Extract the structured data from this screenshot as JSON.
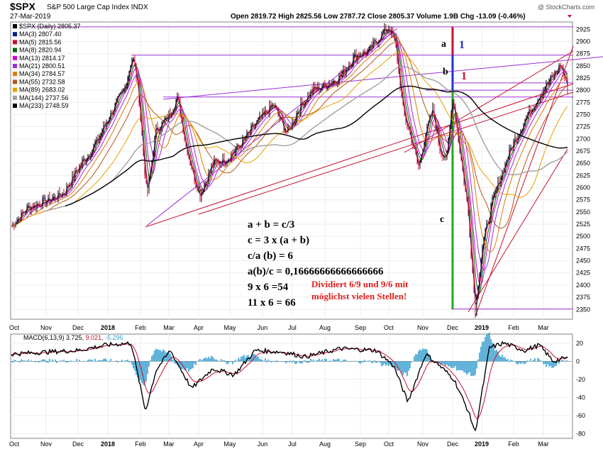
{
  "header": {
    "symbol": "$SPX",
    "name": "S&P 500 Large Cap Index INDX",
    "date": "27-Mar-2019",
    "watermark": "@ StockCharts.com",
    "ohlc": "Open 2819.72  High 2825.56  Low 2787.72  Close 2805.37  Volume 1.9B  Chg -13.09 (-0.46%)"
  },
  "legend": [
    {
      "label": "$SPX (Daily) 2805.37",
      "color": "#000000"
    },
    {
      "label": "MA(3) 2807.40",
      "color": "#0a1a8c"
    },
    {
      "label": "MA(5) 2815.56",
      "color": "#c8102e"
    },
    {
      "label": "MA(8) 2820.94",
      "color": "#006400"
    },
    {
      "label": "MA(13) 2814.17",
      "color": "#d400d4"
    },
    {
      "label": "MA(21) 2800.51",
      "color": "#9b30d9"
    },
    {
      "label": "MA(34) 2784.57",
      "color": "#e07b00"
    },
    {
      "label": "MA(55) 2732.58",
      "color": "#b8541a"
    },
    {
      "label": "MA(89) 2683.02",
      "color": "#e8a000"
    },
    {
      "label": "MA(144) 2737.56",
      "color": "#a0a0a0"
    },
    {
      "label": "MA(233) 2748.59",
      "color": "#000000"
    }
  ],
  "annotations": {
    "eq1": "a + b = c/3",
    "eq2": "c = 3 x (a + b)",
    "eq3": "c/a (b) = 6",
    "eq4": "a(b)/c = 0,16666666666666666",
    "eq5": "9 x 6 =54",
    "eq6": "11 x 6 = 66",
    "note1": "Dividiert 6/9 und 9/6 mit",
    "note2": "möglichst vielen Stellen!",
    "seg_a": "a",
    "seg_b": "b",
    "seg_c": "c",
    "num_a": "1",
    "num_b": "1"
  },
  "xaxis": [
    "Oct",
    "Nov",
    "Dec",
    "2018",
    "Feb",
    "Mar",
    "Apr",
    "May",
    "Jun",
    "Jul",
    "Aug",
    "Sep",
    "Oct",
    "Nov",
    "Dec",
    "2019",
    "Feb",
    "Mar"
  ],
  "price_ticks": [
    2350,
    2375,
    2400,
    2425,
    2450,
    2475,
    2500,
    2525,
    2550,
    2575,
    2600,
    2625,
    2650,
    2675,
    2700,
    2725,
    2750,
    2775,
    2800,
    2825,
    2850,
    2875,
    2900,
    2925
  ],
  "macd_ticks": [
    20,
    0,
    -20,
    -40,
    -60,
    -80
  ],
  "chart_data": {
    "type": "line",
    "title": "$SPX S&P 500 Large Cap Index (Daily) with MACD(6,13,9)",
    "x": [
      "2017-10",
      "2017-11",
      "2017-12",
      "2018-01",
      "2018-01-26",
      "2018-02-08",
      "2018-03-12",
      "2018-04-02",
      "2018-05",
      "2018-06",
      "2018-07",
      "2018-08",
      "2018-09-20",
      "2018-10-03",
      "2018-10-29",
      "2018-11-07",
      "2018-11-23",
      "2018-12-03",
      "2018-12-24",
      "2019-01",
      "2019-02",
      "2019-03-21",
      "2019-03-27"
    ],
    "series": [
      {
        "name": "$SPX close",
        "values": [
          2520,
          2580,
          2650,
          2750,
          2872,
          2580,
          2786,
          2585,
          2720,
          2770,
          2805,
          2880,
          2930,
          2925,
          2640,
          2810,
          2633,
          2790,
          2351,
          2530,
          2745,
          2854,
          2805
        ]
      }
    ],
    "moving_averages": {
      "MA(3)": 2807.4,
      "MA(5)": 2815.56,
      "MA(8)": 2820.94,
      "MA(13)": 2814.17,
      "MA(21)": 2800.51,
      "MA(34)": 2784.57,
      "MA(55)": 2732.58,
      "MA(89)": 2683.02,
      "MA(144)": 2737.56,
      "MA(233)": 2748.59
    },
    "ylim": [
      2330,
      2940
    ],
    "macd": {
      "label": "MACD(6,13,9)",
      "macd": 3.725,
      "signal": 9.021,
      "histogram": -5.296,
      "ylim": [
        -85,
        30
      ],
      "x": [
        "2017-10",
        "2017-12",
        "2018-01",
        "2018-02",
        "2018-03",
        "2018-04",
        "2018-05",
        "2018-07",
        "2018-09",
        "2018-10",
        "2018-11",
        "2018-12",
        "2018-12-24",
        "2019-01",
        "2019-02",
        "2019-03",
        "2019-03-27"
      ],
      "values": [
        8,
        10,
        18,
        -55,
        12,
        -30,
        -8,
        10,
        14,
        -45,
        8,
        -20,
        -78,
        15,
        20,
        12,
        3.7
      ]
    },
    "xlabel": "",
    "ylabel": ""
  }
}
